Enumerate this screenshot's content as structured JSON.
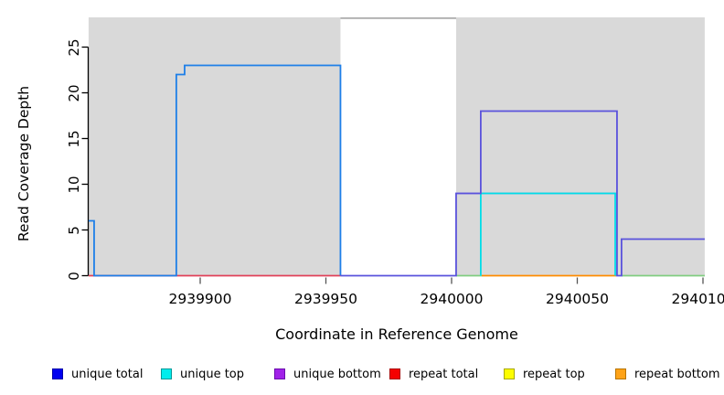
{
  "y_axis": {
    "label": "Read Coverage Depth",
    "tick_values": [
      0,
      5,
      10,
      15,
      20,
      25
    ]
  },
  "x_axis": {
    "label": "Coordinate in Reference Genome",
    "tick_values": [
      2939900,
      2939950,
      2940000,
      2940050,
      2940100
    ],
    "tick_labels": [
      "2939900",
      "2939950",
      "2940000",
      "2940050",
      "2940100"
    ]
  },
  "legend": {
    "items": [
      {
        "label": "unique total",
        "color": "#0000F0",
        "border": "#0000A8"
      },
      {
        "label": "unique top",
        "color": "#00EDED",
        "border": "#009898"
      },
      {
        "label": "unique bottom",
        "color": "#A122E8",
        "border": "#6A0DAD"
      },
      {
        "label": "repeat total",
        "color": "#F50000",
        "border": "#A80000"
      },
      {
        "label": "repeat top",
        "color": "#FDFD00",
        "border": "#A8A800"
      },
      {
        "label": "repeat bottom",
        "color": "#FFA318",
        "border": "#B87400"
      }
    ]
  },
  "chart_data": {
    "type": "line",
    "title": "",
    "xlabel": "Coordinate in Reference Genome",
    "ylabel": "Read Coverage Depth",
    "x_range": [
      2939855.6,
      2940100.7
    ],
    "y_range": [
      0,
      28.3
    ],
    "grid": false,
    "legend_position": "bottom",
    "highlight_regions": {
      "color": "#D9D9D9",
      "regions": [
        [
          2939855.6,
          2939955.8
        ],
        [
          2940001.8,
          2940100.7
        ]
      ]
    },
    "gap_top_line": {
      "from": 2939955.8,
      "to": 2940001.8,
      "color": "#ABABAB"
    },
    "series": [
      {
        "name": "unique total",
        "steps": [
          [
            2939856,
            6
          ],
          [
            2939858,
            0
          ],
          [
            2939890,
            22
          ],
          [
            2939894,
            23
          ],
          [
            2939956,
            0
          ],
          [
            2940002,
            9
          ],
          [
            2940012,
            18
          ],
          [
            2940066,
            0
          ],
          [
            2940068,
            4
          ],
          [
            2940101,
            4
          ]
        ]
      },
      {
        "name": "unique top",
        "steps": [
          [
            2939856,
            0
          ],
          [
            2940012,
            9
          ],
          [
            2940065,
            0
          ],
          [
            2940101,
            0
          ]
        ]
      },
      {
        "name": "unique bottom",
        "steps": [
          [
            2939856,
            0
          ],
          [
            2940002,
            9
          ],
          [
            2940066,
            0
          ],
          [
            2940068,
            4
          ],
          [
            2940101,
            4
          ]
        ]
      },
      {
        "name": "repeat total",
        "steps": [
          [
            2939856,
            0
          ],
          [
            2940101,
            0
          ]
        ]
      },
      {
        "name": "repeat top",
        "steps": [
          [
            2939856,
            0
          ],
          [
            2940101,
            0
          ]
        ]
      },
      {
        "name": "repeat bottom",
        "steps": [
          [
            2939856,
            0
          ],
          [
            2940101,
            0
          ]
        ]
      }
    ],
    "visible_lines": [
      {
        "name": "repeat-total-zero-line",
        "color": "#E04058",
        "points": [
          [
            2939855.6,
            0
          ],
          [
            2939955.8,
            0
          ]
        ]
      },
      {
        "name": "zero-line-green-left",
        "color": "#7FCD7F",
        "points": [
          [
            2940001.8,
            0
          ],
          [
            2940012,
            0
          ]
        ]
      },
      {
        "name": "zero-line-green-right",
        "color": "#7FCD7F",
        "points": [
          [
            2940067.6,
            0
          ],
          [
            2940100.7,
            0
          ]
        ]
      },
      {
        "name": "repeat-bottom-zero-line",
        "color": "#FF8C00",
        "points": [
          [
            2940012,
            0
          ],
          [
            2940065.5,
            0
          ]
        ]
      },
      {
        "name": "unique-bottom-level9",
        "color": "#9D97E6",
        "points": [
          [
            2940001.8,
            9
          ],
          [
            2940065.8,
            9
          ]
        ]
      },
      {
        "name": "unique-top-step",
        "color": "#00DDE8",
        "points": [
          [
            2940011.6,
            0
          ],
          [
            2940011.6,
            9
          ],
          [
            2940065.1,
            9
          ],
          [
            2940065.1,
            0
          ]
        ]
      },
      {
        "name": "unique-total-left",
        "color": "#1E7FE8",
        "points": [
          [
            2939855.6,
            6
          ],
          [
            2939857.8,
            6
          ],
          [
            2939857.8,
            0
          ],
          [
            2939890.5,
            0
          ],
          [
            2939890.5,
            22
          ],
          [
            2939893.8,
            22
          ],
          [
            2939893.8,
            23
          ],
          [
            2939955.8,
            23
          ],
          [
            2939955.8,
            0
          ]
        ]
      },
      {
        "name": "unique-total-right",
        "color": "#5A52DC",
        "points": [
          [
            2939955.8,
            0
          ],
          [
            2940001.8,
            0
          ],
          [
            2940001.8,
            9
          ],
          [
            2940011.6,
            9
          ],
          [
            2940011.6,
            18
          ],
          [
            2940065.8,
            18
          ],
          [
            2940065.8,
            0
          ],
          [
            2940067.6,
            0
          ],
          [
            2940067.6,
            4
          ],
          [
            2940100.7,
            4
          ]
        ]
      }
    ]
  }
}
